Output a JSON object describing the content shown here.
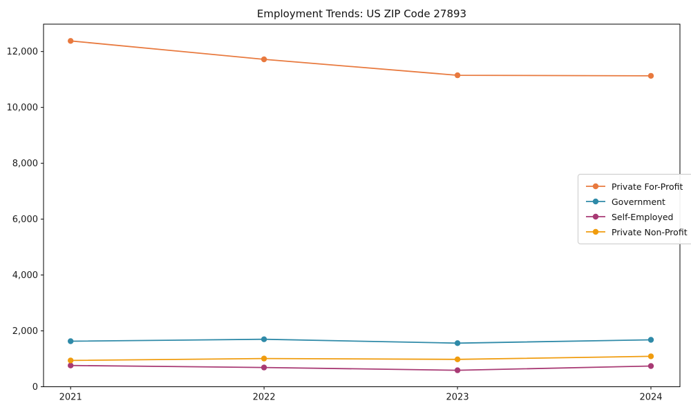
{
  "window": {
    "background": "#ffffff"
  },
  "chart_data": {
    "type": "line",
    "title": "Employment Trends: US ZIP Code 27893",
    "xlabel": "",
    "ylabel": "",
    "grid": false,
    "legend_position": "center-right",
    "marker": "circle",
    "axis_color": "#000000",
    "text_color": "#1a1a1a",
    "x": [
      2021,
      2022,
      2023,
      2024
    ],
    "x_tick_labels": [
      "2021",
      "2022",
      "2023",
      "2024"
    ],
    "xlim": [
      2020.86,
      2024.15
    ],
    "ylim": [
      0,
      12980
    ],
    "y_ticks": [
      0,
      2000,
      4000,
      6000,
      8000,
      10000,
      12000
    ],
    "y_tick_labels": [
      "0",
      "2,000",
      "4,000",
      "6,000",
      "8,000",
      "10,000",
      "12,000"
    ],
    "series": [
      {
        "name": "Private For-Profit",
        "color": "#e8793e",
        "values": [
          12380,
          11720,
          11150,
          11130
        ]
      },
      {
        "name": "Government",
        "color": "#2f8aa8",
        "values": [
          1630,
          1700,
          1560,
          1680
        ]
      },
      {
        "name": "Self-Employed",
        "color": "#a83a74",
        "values": [
          760,
          690,
          590,
          740
        ]
      },
      {
        "name": "Private Non-Profit",
        "color": "#f09c0e",
        "values": [
          940,
          1010,
          980,
          1090
        ]
      }
    ]
  }
}
